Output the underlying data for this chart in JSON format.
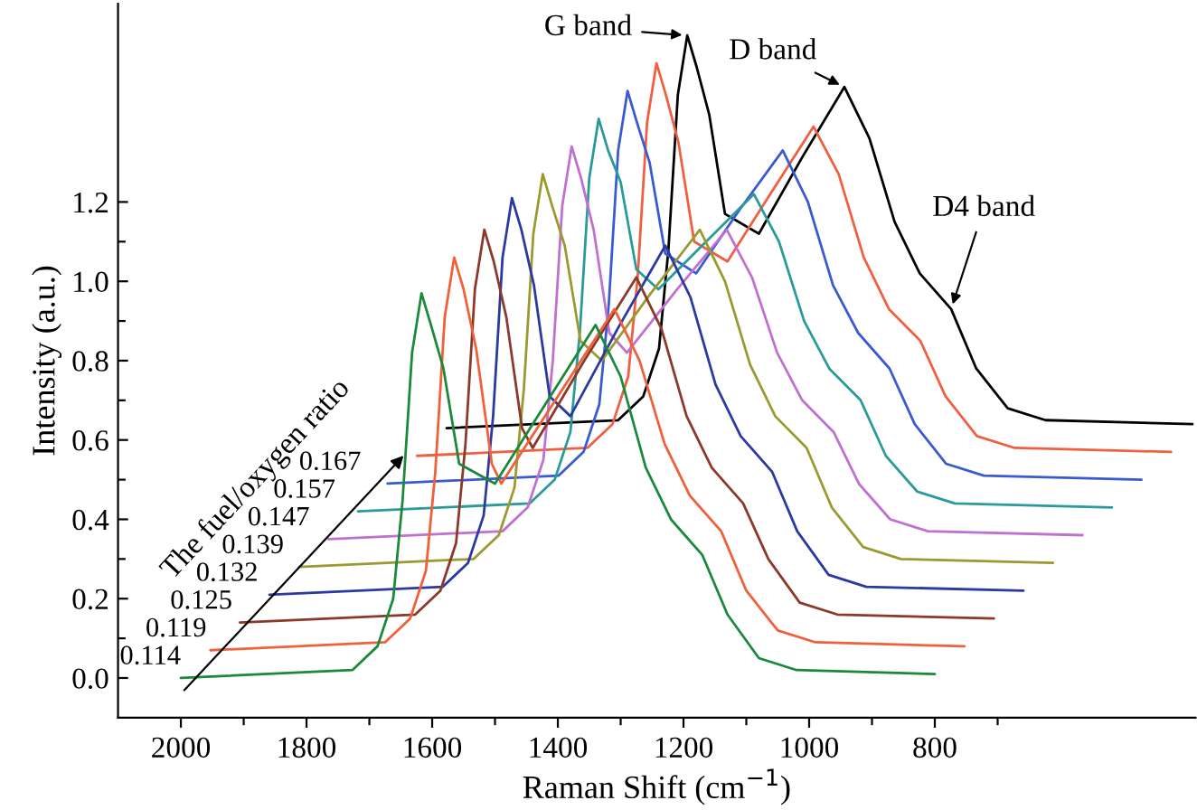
{
  "chart_data": {
    "type": "line",
    "xlabel": "Raman Shift (cm$^{−1}$)",
    "ylabel": "Intensity (a.u.)",
    "xlim": [
      2100,
      385
    ],
    "ylim": [
      -0.1,
      1.7
    ],
    "xticks": [
      2000,
      {
        "value": 1900,
        "label": null
      },
      1800,
      {
        "value": 1700,
        "label": null
      },
      1600,
      {
        "value": 1500,
        "label": null
      },
      1400,
      {
        "value": 1300,
        "label": null
      },
      1200,
      {
        "value": 1100,
        "label": null
      },
      1000,
      {
        "value": 900,
        "label": null
      },
      800,
      {
        "value": 700,
        "label": null
      }
    ],
    "yticks": [
      {
        "value": 0,
        "label": "0.0"
      },
      {
        "value": 0.1,
        "label": null
      },
      {
        "value": 0.2,
        "label": "0.2"
      },
      {
        "value": 0.3,
        "label": null
      },
      {
        "value": 0.4,
        "label": "0.4"
      },
      {
        "value": 0.5,
        "label": null
      },
      {
        "value": 0.6,
        "label": "0.6"
      },
      {
        "value": 0.7,
        "label": null
      },
      {
        "value": 0.8,
        "label": "0.8"
      },
      {
        "value": 0.9,
        "label": null
      },
      {
        "value": 1.0,
        "label": "1.0"
      },
      {
        "value": 1.1,
        "label": null
      },
      {
        "value": 1.2,
        "label": "1.2"
      }
    ],
    "grid": false,
    "legend": false,
    "annotations": [
      "The fuel/oxygen ratio",
      {
        "text": "G band",
        "x": 1194,
        "y": 1.62
      },
      {
        "text": "D band",
        "x": 944,
        "y": 1.49
      },
      {
        "text": "D4 band",
        "x": 774,
        "y": 0.93
      }
    ],
    "series": [
      {
        "name": "0.114",
        "color": "#1a8a3a",
        "x": [
          2000,
          1727,
          1687,
          1662,
          1647,
          1632,
          1617,
          1602,
          1582,
          1557,
          1500,
          1420,
          1340,
          1300,
          1260,
          1220,
          1170,
          1130,
          1080,
          1020,
          800
        ],
        "values": [
          0,
          0.02,
          0.08,
          0.2,
          0.45,
          0.82,
          0.97,
          0.89,
          0.78,
          0.54,
          0.49,
          0.69,
          0.89,
          0.76,
          0.53,
          0.4,
          0.31,
          0.16,
          0.05,
          0.02,
          0.01
        ]
      },
      {
        "name": "0.119",
        "color": "#f0603a",
        "x": [
          1953,
          1675,
          1635,
          1610,
          1595,
          1580,
          1565,
          1550,
          1530,
          1505,
          1490,
          1400,
          1310,
          1270,
          1230,
          1190,
          1140,
          1100,
          1050,
          990,
          753
        ],
        "values": [
          0.07,
          0.09,
          0.15,
          0.27,
          0.52,
          0.91,
          1.06,
          0.98,
          0.83,
          0.54,
          0.49,
          0.71,
          0.93,
          0.8,
          0.59,
          0.46,
          0.37,
          0.22,
          0.12,
          0.09,
          0.08
        ]
      },
      {
        "name": "0.125",
        "color": "#8b3a2a",
        "x": [
          1906,
          1627,
          1587,
          1562,
          1547,
          1532,
          1517,
          1502,
          1482,
          1457,
          1440,
          1358,
          1275,
          1235,
          1195,
          1155,
          1105,
          1065,
          1015,
          955,
          706
        ],
        "values": [
          0.14,
          0.16,
          0.22,
          0.34,
          0.59,
          0.98,
          1.13,
          1.05,
          0.91,
          0.63,
          0.58,
          0.8,
          1.01,
          0.88,
          0.66,
          0.53,
          0.44,
          0.3,
          0.19,
          0.16,
          0.15
        ]
      },
      {
        "name": "0.132",
        "color": "#2a3aa0",
        "x": [
          1859,
          1583,
          1543,
          1518,
          1503,
          1488,
          1473,
          1458,
          1438,
          1413,
          1380,
          1305,
          1229,
          1189,
          1149,
          1109,
          1059,
          1019,
          969,
          909,
          659
        ],
        "values": [
          0.21,
          0.23,
          0.29,
          0.41,
          0.66,
          1.06,
          1.21,
          1.13,
          0.99,
          0.71,
          0.66,
          0.88,
          1.09,
          0.96,
          0.74,
          0.61,
          0.52,
          0.37,
          0.26,
          0.23,
          0.22
        ]
      },
      {
        "name": "0.139",
        "color": "#9a9a30",
        "x": [
          1812,
          1534,
          1494,
          1469,
          1454,
          1439,
          1424,
          1409,
          1389,
          1364,
          1330,
          1252,
          1174,
          1134,
          1094,
          1054,
          1004,
          964,
          914,
          854,
          612
        ],
        "values": [
          0.28,
          0.3,
          0.36,
          0.48,
          0.73,
          1.12,
          1.27,
          1.19,
          1.09,
          0.85,
          0.8,
          0.97,
          1.13,
          1.0,
          0.79,
          0.66,
          0.58,
          0.43,
          0.33,
          0.3,
          0.29
        ]
      },
      {
        "name": "0.147",
        "color": "#c070d0",
        "x": [
          1765,
          1488,
          1448,
          1423,
          1408,
          1393,
          1378,
          1363,
          1343,
          1318,
          1290,
          1210,
          1131,
          1091,
          1051,
          1011,
          961,
          921,
          871,
          811,
          565
        ],
        "values": [
          0.35,
          0.37,
          0.43,
          0.55,
          0.8,
          1.19,
          1.34,
          1.26,
          1.13,
          0.87,
          0.82,
          0.98,
          1.13,
          1.01,
          0.82,
          0.7,
          0.62,
          0.49,
          0.4,
          0.37,
          0.36
        ]
      },
      {
        "name": "0.157",
        "color": "#2a9a9a",
        "x": [
          1718,
          1445,
          1405,
          1380,
          1365,
          1350,
          1335,
          1320,
          1300,
          1275,
          1240,
          1164,
          1088,
          1048,
          1008,
          968,
          918,
          878,
          828,
          768,
          518
        ],
        "values": [
          0.42,
          0.44,
          0.5,
          0.62,
          0.87,
          1.26,
          1.41,
          1.33,
          1.25,
          1.03,
          0.98,
          1.1,
          1.22,
          1.1,
          0.9,
          0.78,
          0.7,
          0.56,
          0.47,
          0.44,
          0.43
        ]
      },
      {
        "name": "0.167",
        "color": "#3a5ad0",
        "x": [
          1671,
          1399,
          1359,
          1334,
          1319,
          1304,
          1289,
          1274,
          1254,
          1229,
          1180,
          1111,
          1042,
          1002,
          962,
          922,
          872,
          832,
          782,
          722,
          471
        ],
        "values": [
          0.49,
          0.51,
          0.57,
          0.69,
          0.94,
          1.33,
          1.48,
          1.4,
          1.3,
          1.07,
          1.02,
          1.18,
          1.33,
          1.2,
          0.99,
          0.87,
          0.78,
          0.64,
          0.54,
          0.51,
          0.5
        ]
      },
      {
        "color": "#f06040",
        "x": [
          1624,
          1353,
          1313,
          1288,
          1273,
          1258,
          1243,
          1228,
          1208,
          1183,
          1130,
          1062,
          993,
          953,
          913,
          873,
          823,
          783,
          733,
          673,
          424
        ],
        "values": [
          0.56,
          0.58,
          0.64,
          0.76,
          1.01,
          1.4,
          1.55,
          1.47,
          1.35,
          1.1,
          1.05,
          1.22,
          1.39,
          1.27,
          1.06,
          0.93,
          0.85,
          0.71,
          0.61,
          0.58,
          0.57
        ]
      },
      {
        "color": "#000000",
        "x": [
          1577,
          1304,
          1264,
          1239,
          1224,
          1209,
          1194,
          1179,
          1159,
          1134,
          1080,
          1012,
          944,
          904,
          864,
          824,
          774,
          734,
          684,
          624,
          390
        ],
        "values": [
          0.63,
          0.65,
          0.71,
          0.83,
          1.08,
          1.47,
          1.62,
          1.54,
          1.42,
          1.17,
          1.12,
          1.31,
          1.49,
          1.36,
          1.15,
          1.02,
          0.93,
          0.78,
          0.68,
          0.65,
          0.64
        ]
      }
    ]
  }
}
